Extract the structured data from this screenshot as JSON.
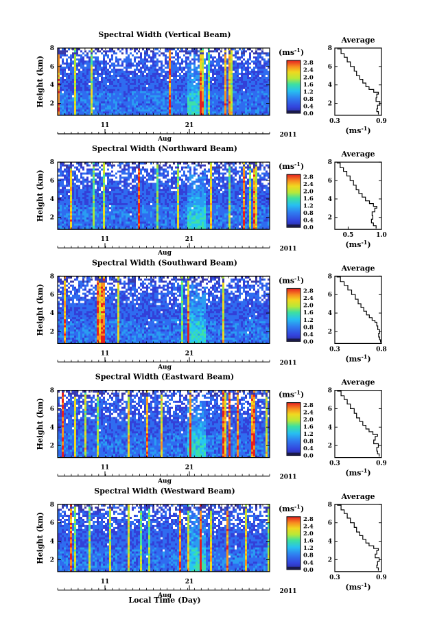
{
  "figure": {
    "xlabel_bottom": "Local Time (Day)"
  },
  "chart_data": [
    {
      "type": "heatmap",
      "title": "Spectral Width (Vertical Beam)",
      "ylabel": "Height (km)",
      "x_ticks": [
        "11",
        "21"
      ],
      "x_label": "Aug",
      "year_label": "2011",
      "y_ticks": [
        "2",
        "4",
        "6",
        "8"
      ],
      "ylim": [
        0.7,
        8
      ],
      "colorbar": {
        "unit": "(ms",
        "exp": "-1",
        "ticks": [
          "0.0",
          "0.4",
          "0.8",
          "1.2",
          "1.6",
          "2.0",
          "2.4",
          "2.8"
        ]
      },
      "profile": {
        "title": "Average",
        "xlabel": "(ms",
        "xlabel_exp": "-1",
        "x_ticks": [
          "0.3",
          "0.9"
        ],
        "xlim": [
          0.3,
          0.9
        ],
        "y_ticks": [
          "2",
          "4",
          "6",
          "8"
        ],
        "ylim": [
          0.7,
          8
        ],
        "x": [
          0.33,
          0.38,
          0.42,
          0.46,
          0.5,
          0.55,
          0.58,
          0.62,
          0.66,
          0.7,
          0.74,
          0.8,
          0.86,
          0.84,
          0.83,
          0.88,
          0.85,
          0.84,
          0.86
        ],
        "y": [
          7.9,
          7.4,
          7.0,
          6.5,
          6.0,
          5.5,
          5.0,
          4.6,
          4.2,
          3.8,
          3.5,
          3.2,
          3.0,
          2.6,
          2.2,
          1.8,
          1.4,
          1.1,
          0.8
        ]
      }
    },
    {
      "type": "heatmap",
      "title": "Spectral Width (Northward Beam)",
      "ylabel": "Height (km)",
      "x_ticks": [
        "11",
        "21"
      ],
      "x_label": "Aug",
      "year_label": "2011",
      "y_ticks": [
        "2",
        "4",
        "6",
        "8"
      ],
      "ylim": [
        0.7,
        8
      ],
      "colorbar": {
        "unit": "(ms",
        "exp": "-1",
        "ticks": [
          "0.0",
          "0.4",
          "0.8",
          "1.2",
          "1.6",
          "2.0",
          "2.4",
          "2.8"
        ]
      },
      "profile": {
        "title": "Average",
        "xlabel": "(ms",
        "xlabel_exp": "-1",
        "x_ticks": [
          "0.5",
          "1.0"
        ],
        "xlim": [
          0.3,
          1.0
        ],
        "y_ticks": [
          "2",
          "4",
          "6",
          "8"
        ],
        "ylim": [
          0.7,
          8
        ],
        "x": [
          0.33,
          0.38,
          0.43,
          0.48,
          0.53,
          0.58,
          0.62,
          0.66,
          0.71,
          0.76,
          0.82,
          0.88,
          0.93,
          0.9,
          0.86,
          0.87,
          0.85,
          0.88,
          0.92
        ],
        "y": [
          7.9,
          7.4,
          7.0,
          6.5,
          6.0,
          5.5,
          5.0,
          4.6,
          4.2,
          3.8,
          3.5,
          3.2,
          3.0,
          2.6,
          2.2,
          1.8,
          1.4,
          1.1,
          0.8
        ]
      }
    },
    {
      "type": "heatmap",
      "title": "Spectral Width (Southward Beam)",
      "ylabel": "Height (km)",
      "x_ticks": [
        "11",
        "21"
      ],
      "x_label": "Aug",
      "year_label": "2011",
      "y_ticks": [
        "2",
        "4",
        "6",
        "8"
      ],
      "ylim": [
        0.7,
        8
      ],
      "colorbar": {
        "unit": "(ms",
        "exp": "-1",
        "ticks": [
          "0.0",
          "0.4",
          "0.8",
          "1.2",
          "1.6",
          "2.0",
          "2.4",
          "2.8"
        ]
      },
      "profile": {
        "title": "Average",
        "xlabel": "(ms",
        "xlabel_exp": "-1",
        "x_ticks": [
          "0.3",
          "0.8"
        ],
        "xlim": [
          0.3,
          0.8
        ],
        "y_ticks": [
          "2",
          "4",
          "6",
          "8"
        ],
        "ylim": [
          0.7,
          8
        ],
        "x": [
          0.32,
          0.36,
          0.4,
          0.44,
          0.48,
          0.52,
          0.55,
          0.58,
          0.61,
          0.64,
          0.67,
          0.7,
          0.73,
          0.75,
          0.76,
          0.78,
          0.77,
          0.78,
          0.79
        ],
        "y": [
          7.9,
          7.4,
          7.0,
          6.5,
          6.0,
          5.5,
          5.0,
          4.6,
          4.2,
          3.8,
          3.5,
          3.2,
          3.0,
          2.6,
          2.2,
          1.8,
          1.4,
          1.1,
          0.8
        ]
      }
    },
    {
      "type": "heatmap",
      "title": "Spectral Width (Eastward Beam)",
      "ylabel": "Height (km)",
      "x_ticks": [
        "11",
        "21"
      ],
      "x_label": "Aug",
      "year_label": "2011",
      "y_ticks": [
        "2",
        "4",
        "6",
        "8"
      ],
      "ylim": [
        0.7,
        8
      ],
      "colorbar": {
        "unit": "(ms",
        "exp": "-1",
        "ticks": [
          "0.0",
          "0.4",
          "0.8",
          "1.2",
          "1.6",
          "2.0",
          "2.4",
          "2.8"
        ]
      },
      "profile": {
        "title": "Average",
        "xlabel": "(ms",
        "xlabel_exp": "-1",
        "x_ticks": [
          "0.3",
          "0.9"
        ],
        "xlim": [
          0.3,
          0.9
        ],
        "y_ticks": [
          "2",
          "4",
          "6",
          "8"
        ],
        "ylim": [
          0.7,
          8
        ],
        "x": [
          0.33,
          0.38,
          0.42,
          0.46,
          0.5,
          0.55,
          0.58,
          0.62,
          0.66,
          0.7,
          0.74,
          0.79,
          0.85,
          0.82,
          0.8,
          0.86,
          0.84,
          0.85,
          0.87
        ],
        "y": [
          7.9,
          7.4,
          7.0,
          6.5,
          6.0,
          5.5,
          5.0,
          4.6,
          4.2,
          3.8,
          3.5,
          3.2,
          3.0,
          2.6,
          2.2,
          1.8,
          1.4,
          1.1,
          0.8
        ]
      }
    },
    {
      "type": "heatmap",
      "title": "Spectral Width (Westward Beam)",
      "ylabel": "Height (km)",
      "x_ticks": [
        "11",
        "21"
      ],
      "x_label": "Aug",
      "year_label": "2011",
      "y_ticks": [
        "2",
        "4",
        "6",
        "8"
      ],
      "ylim": [
        0.7,
        8
      ],
      "colorbar": {
        "unit": "(ms",
        "exp": "-1",
        "ticks": [
          "0.0",
          "0.4",
          "0.8",
          "1.2",
          "1.6",
          "2.0",
          "2.4",
          "2.8"
        ]
      },
      "profile": {
        "title": "Average",
        "xlabel": "(ms",
        "xlabel_exp": "-1",
        "x_ticks": [
          "0.3",
          "0.9"
        ],
        "xlim": [
          0.3,
          0.9
        ],
        "y_ticks": [
          "2",
          "4",
          "6",
          "8"
        ],
        "ylim": [
          0.7,
          8
        ],
        "x": [
          0.33,
          0.38,
          0.42,
          0.46,
          0.5,
          0.55,
          0.58,
          0.62,
          0.66,
          0.7,
          0.74,
          0.8,
          0.86,
          0.84,
          0.82,
          0.87,
          0.85,
          0.84,
          0.86
        ],
        "y": [
          7.9,
          7.4,
          7.0,
          6.5,
          6.0,
          5.5,
          5.0,
          4.6,
          4.2,
          3.8,
          3.5,
          3.2,
          3.0,
          2.6,
          2.2,
          1.8,
          1.4,
          1.1,
          0.8
        ]
      }
    }
  ]
}
